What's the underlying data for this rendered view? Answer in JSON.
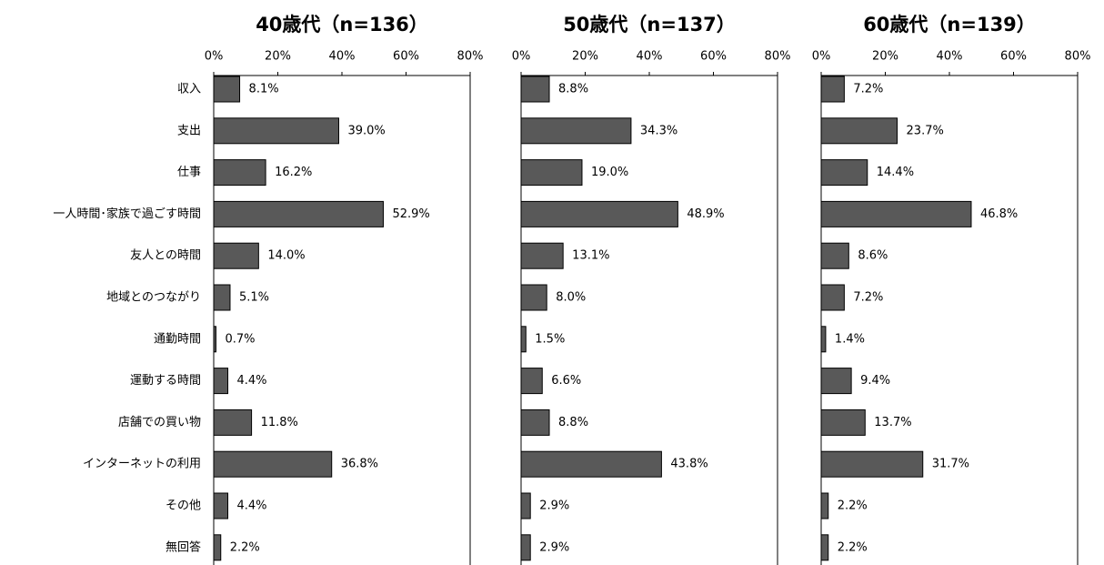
{
  "chart_data": [
    {
      "type": "bar",
      "orientation": "horizontal",
      "title": "40歳代（n=136）",
      "categories": [
        "収入",
        "支出",
        "仕事",
        "一人時間･家族で過ごす時間",
        "友人との時間",
        "地域とのつながり",
        "通勤時間",
        "運動する時間",
        "店舗での買い物",
        "インターネットの利用",
        "その他",
        "無回答"
      ],
      "values": [
        8.1,
        39.0,
        16.2,
        52.9,
        14.0,
        5.1,
        0.7,
        4.4,
        11.8,
        36.8,
        4.4,
        2.2
      ],
      "value_labels": [
        "8.1%",
        "39.0%",
        "16.2%",
        "52.9%",
        "14.0%",
        "5.1%",
        "0.7%",
        "4.4%",
        "11.8%",
        "36.8%",
        "4.4%",
        "2.2%"
      ],
      "color": "#595959",
      "xlim": [
        0,
        80
      ],
      "xticks": [
        {
          "value": 0,
          "label": "0%"
        },
        {
          "value": 20,
          "label": "20%"
        },
        {
          "value": 40,
          "label": "40%"
        },
        {
          "value": 60,
          "label": "60%"
        },
        {
          "value": 80,
          "label": "80%"
        }
      ]
    },
    {
      "type": "bar",
      "orientation": "horizontal",
      "title": "50歳代（n=137）",
      "values": [
        8.8,
        34.3,
        19.0,
        48.9,
        13.1,
        8.0,
        1.5,
        6.6,
        8.8,
        43.8,
        2.9,
        2.9
      ],
      "value_labels": [
        "8.8%",
        "34.3%",
        "19.0%",
        "48.9%",
        "13.1%",
        "8.0%",
        "1.5%",
        "6.6%",
        "8.8%",
        "43.8%",
        "2.9%",
        "2.9%"
      ],
      "color": "#595959",
      "xlim": [
        0,
        80
      ],
      "xticks": [
        {
          "value": 0,
          "label": "0%"
        },
        {
          "value": 20,
          "label": "20%"
        },
        {
          "value": 40,
          "label": "40%"
        },
        {
          "value": 60,
          "label": "60%"
        },
        {
          "value": 80,
          "label": "80%"
        }
      ]
    },
    {
      "type": "bar",
      "orientation": "horizontal",
      "title": "60歳代（n=139）",
      "values": [
        7.2,
        23.7,
        14.4,
        46.8,
        8.6,
        7.2,
        1.4,
        9.4,
        13.7,
        31.7,
        2.2,
        2.2
      ],
      "value_labels": [
        "7.2%",
        "23.7%",
        "14.4%",
        "46.8%",
        "8.6%",
        "7.2%",
        "1.4%",
        "9.4%",
        "13.7%",
        "31.7%",
        "2.2%",
        "2.2%"
      ],
      "color": "#595959",
      "xlim": [
        0,
        80
      ],
      "xticks": [
        {
          "value": 0,
          "label": "0%"
        },
        {
          "value": 20,
          "label": "20%"
        },
        {
          "value": 40,
          "label": "40%"
        },
        {
          "value": 60,
          "label": "60%"
        },
        {
          "value": 80,
          "label": "80%"
        }
      ]
    }
  ]
}
